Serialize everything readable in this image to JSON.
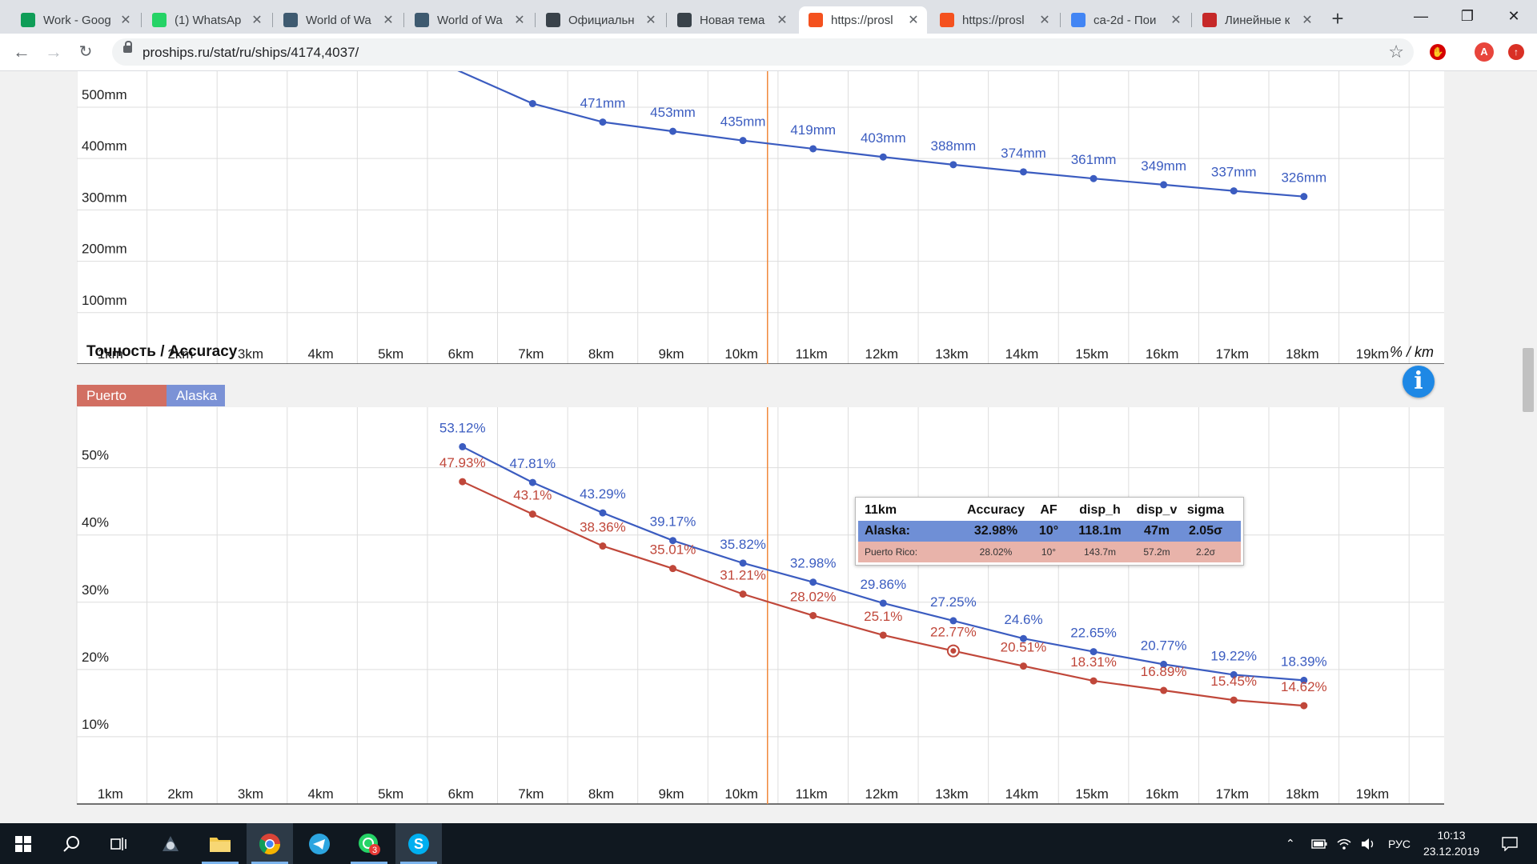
{
  "browser": {
    "tabs": [
      {
        "title": "Work - Goog",
        "icon": "sheets-icon",
        "color": "#0f9d58"
      },
      {
        "title": "(1) WhatsAp",
        "icon": "whatsapp-icon",
        "color": "#25d366"
      },
      {
        "title": "World of Wa",
        "icon": "wows-icon",
        "color": "#3e5a70"
      },
      {
        "title": "World of Wa",
        "icon": "wows-icon",
        "color": "#3e5a70"
      },
      {
        "title": "Официальн",
        "icon": "wows-forum-icon",
        "color": "#39424a"
      },
      {
        "title": "Новая тема",
        "icon": "wows-forum-icon",
        "color": "#39424a"
      },
      {
        "title": "https://prosl",
        "icon": "proships-icon",
        "color": "#f4511e"
      },
      {
        "title": "https://prosl",
        "icon": "proships-icon",
        "color": "#f4511e"
      },
      {
        "title": "ca-2d - Пои",
        "icon": "google-icon",
        "color": "#4285f4"
      },
      {
        "title": "Линейные к",
        "icon": "site-icon",
        "color": "#c62828"
      }
    ],
    "active_tab_index": 6,
    "url": "proships.ru/stat/ru/ships/4174,4037/",
    "profile_letter": "A"
  },
  "colors": {
    "alaska": "#3b5cc0",
    "puerto_rico": "#c0473a",
    "alaska_tab": "#7b92d6",
    "puerto_rico_tab": "#d26f62",
    "cursor_line": "#f08a3c",
    "grid": "#dddddd"
  },
  "penetration_chart": {
    "y_ticks": [
      "500mm",
      "400mm",
      "300mm",
      "200mm",
      "100mm"
    ],
    "x_ticks": [
      "1km",
      "2km",
      "3km",
      "4km",
      "5km",
      "6km",
      "7km",
      "8km",
      "9km",
      "10km",
      "11km",
      "12km",
      "13km",
      "14km",
      "15km",
      "16km",
      "17km",
      "18km",
      "19km"
    ],
    "point_labels": [
      "471mm",
      "453mm",
      "435mm",
      "419mm",
      "403mm",
      "388mm",
      "374mm",
      "361mm",
      "349mm",
      "337mm",
      "326mm"
    ]
  },
  "accuracy_chart": {
    "legend": [
      "Puerto Rico",
      "Alaska"
    ],
    "title": "Точность / Accuracy",
    "unit": "% / km",
    "info_symbol": "i",
    "y_ticks": [
      "50%",
      "40%",
      "30%",
      "20%",
      "10%"
    ],
    "x_ticks": [
      "1km",
      "2km",
      "3km",
      "4km",
      "5km",
      "6km",
      "7km",
      "8km",
      "9km",
      "10km",
      "11km",
      "12km",
      "13km",
      "14km",
      "15km",
      "16km",
      "17km",
      "18km",
      "19km"
    ],
    "tooltip": {
      "header": [
        "11km",
        "Accuracy",
        "AF",
        "disp_h",
        "disp_v",
        "sigma"
      ],
      "alaska": [
        "Alaska:",
        "32.98%",
        "10°",
        "118.1m",
        "47m",
        "2.05σ"
      ],
      "puerto_rico": [
        "Puerto Rico:",
        "28.02%",
        "10°",
        "143.7m",
        "57.2m",
        "2.2σ"
      ]
    }
  },
  "chart_data": [
    {
      "type": "line",
      "x": [
        6,
        7,
        8,
        9,
        10,
        11,
        12,
        13,
        14,
        15,
        16,
        17,
        18
      ],
      "series": [
        {
          "name": "Alaska",
          "values": [
            null,
            507,
            471,
            453,
            435,
            419,
            403,
            388,
            374,
            361,
            349,
            337,
            326
          ]
        }
      ],
      "ylim": [
        0,
        570
      ],
      "xlim": [
        0.5,
        20
      ],
      "cursor_x": 10.35
    },
    {
      "type": "line",
      "x": [
        6,
        7,
        8,
        9,
        10,
        11,
        12,
        13,
        14,
        15,
        16,
        17,
        18
      ],
      "series": [
        {
          "name": "Alaska",
          "values": [
            53.12,
            47.81,
            43.29,
            39.17,
            35.82,
            32.98,
            29.86,
            27.25,
            24.6,
            22.65,
            20.77,
            19.22,
            18.39
          ]
        },
        {
          "name": "Puerto Rico",
          "values": [
            47.93,
            43.1,
            38.36,
            35.01,
            31.21,
            28.02,
            25.1,
            22.77,
            20.51,
            18.31,
            16.89,
            15.45,
            14.62
          ]
        }
      ],
      "point_labels_alaska": [
        "53.12%",
        "47.81%",
        "43.29%",
        "39.17%",
        "35.82%",
        "32.98%",
        "29.86%",
        "27.25%",
        "24.6%",
        "22.65%",
        "20.77%",
        "19.22%",
        "18.39%"
      ],
      "point_labels_puerto_rico": [
        "47.93%",
        "43.1%",
        "38.36%",
        "35.01%",
        "31.21%",
        "28.02%",
        "25.1%",
        "22.77%",
        "20.51%",
        "18.31%",
        "16.89%",
        "15.45%",
        "14.62%"
      ],
      "ylim": [
        0,
        59
      ],
      "xlim": [
        0.5,
        20
      ],
      "cursor_x": 10.35,
      "highlight": {
        "series": "Puerto Rico",
        "x": 13
      }
    }
  ],
  "taskbar": {
    "language": "РУС",
    "time": "10:13",
    "date": "23.12.2019",
    "whatsapp_badge": "3"
  }
}
